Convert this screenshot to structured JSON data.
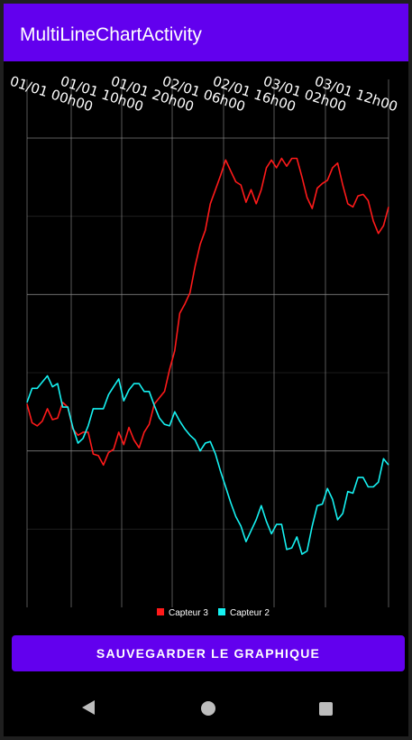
{
  "app": {
    "title": "MultiLineChartActivity"
  },
  "button": {
    "save_label": "SAUVEGARDER LE GRAPHIQUE"
  },
  "navigation": {
    "back_icon": "back-triangle-icon",
    "home_icon": "home-circle-icon",
    "recents_icon": "recents-square-icon"
  },
  "colors": {
    "appbar": "#6200ee",
    "series_red": "#ff1a1a",
    "series_cyan": "#16f2f2",
    "grid": "#777777"
  },
  "chart_data": {
    "type": "line",
    "x_tick_labels": [
      "01/01 00h00",
      "01/01 10h00",
      "01/01 20h00",
      "02/01 06h00",
      "02/01 16h00",
      "03/01 02h00",
      "03/01 12h00"
    ],
    "grid": true,
    "legend_position": "bottom-center",
    "series": [
      {
        "name": "Capteur 3",
        "color": "#ff1a1a",
        "values": [
          30,
          18,
          16,
          19,
          27,
          20,
          21,
          31,
          28,
          14,
          10,
          12,
          12,
          -2,
          -3,
          -9,
          -1,
          1,
          12,
          4,
          15,
          7,
          2,
          12,
          17,
          30,
          34,
          38,
          52,
          64,
          88,
          94,
          101,
          118,
          132,
          141,
          158,
          167,
          176,
          186,
          179,
          172,
          170,
          159,
          167,
          158,
          167,
          181,
          186,
          181,
          187,
          182,
          187,
          187,
          175,
          162,
          155,
          168,
          171,
          173,
          181,
          184,
          170,
          158,
          156,
          163,
          164,
          160,
          147,
          139,
          144,
          156
        ]
      },
      {
        "name": "Capteur 2",
        "color": "#16f2f2",
        "values": [
          31,
          40,
          40,
          44,
          48,
          41,
          43,
          28,
          28,
          15,
          5,
          8,
          16,
          27,
          27,
          27,
          36,
          41,
          46,
          32,
          39,
          43,
          43,
          38,
          38,
          29,
          21,
          17,
          16,
          25,
          19,
          14,
          10,
          7,
          0,
          5,
          6,
          -2,
          -13,
          -23,
          -33,
          -42,
          -48,
          -58,
          -51,
          -44,
          -35,
          -45,
          -53,
          -47,
          -47,
          -63,
          -62,
          -55,
          -66,
          -64,
          -48,
          -35,
          -34,
          -24,
          -31,
          -44,
          -40,
          -26,
          -27,
          -17,
          -17,
          -23,
          -23,
          -20,
          -5,
          -9
        ]
      }
    ]
  }
}
